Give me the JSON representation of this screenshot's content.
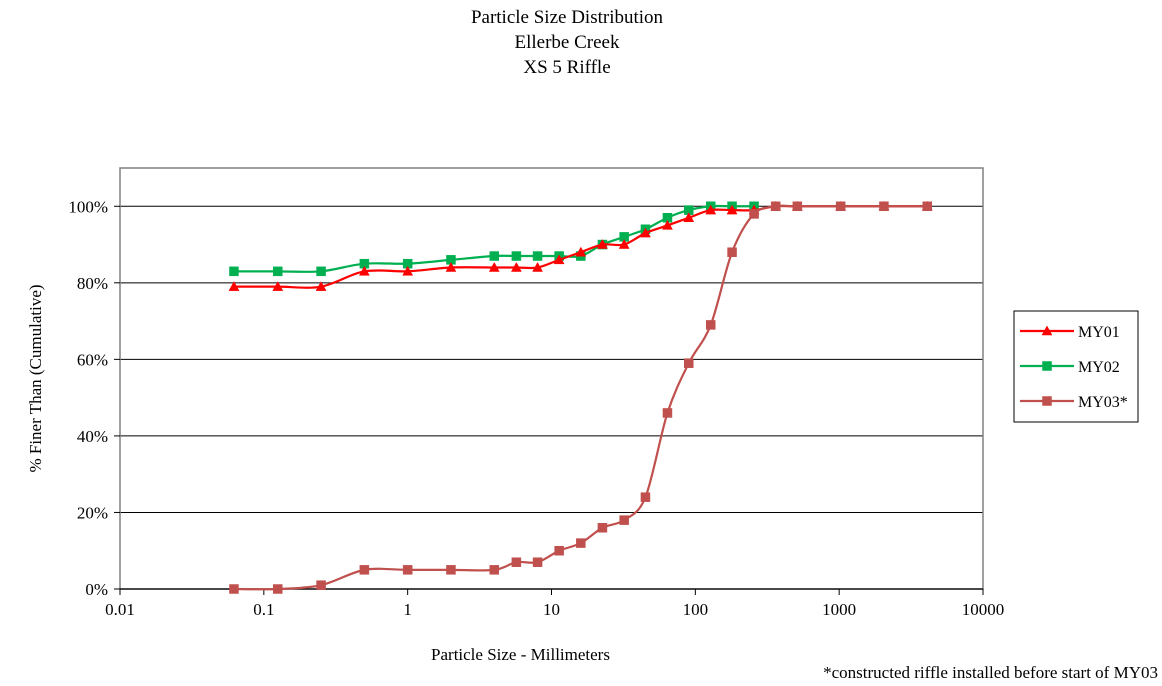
{
  "chart_data": {
    "type": "line",
    "title_lines": [
      "Particle Size Distribution",
      "Ellerbe Creek",
      "XS 5 Riffle"
    ],
    "xlabel": "Particle Size - Millimeters",
    "ylabel": "% Finer Than (Cumulative)",
    "x_scale": "log",
    "xlim": [
      0.01,
      10000
    ],
    "ylim": [
      0,
      110
    ],
    "x_ticks": [
      0.01,
      0.1,
      1,
      10,
      100,
      1000,
      10000
    ],
    "x_tick_labels": [
      "0.01",
      "0.1",
      "1",
      "10",
      "100",
      "1000",
      "10000"
    ],
    "y_ticks": [
      0,
      20,
      40,
      60,
      80,
      100
    ],
    "y_tick_labels": [
      "0%",
      "20%",
      "40%",
      "60%",
      "80%",
      "100%"
    ],
    "grid": "horizontal major gridlines",
    "legend_position": "right",
    "footnote": "*constructed riffle installed before start of MY03",
    "series": [
      {
        "name": "MY01",
        "color": "#ff0000",
        "marker": "triangle",
        "x": [
          0.062,
          0.125,
          0.25,
          0.5,
          1,
          2,
          4,
          5.7,
          8,
          11.3,
          16,
          22.6,
          32,
          45,
          64,
          90,
          128,
          180,
          256,
          362,
          512,
          1024,
          2048,
          4096
        ],
        "y": [
          79,
          79,
          79,
          83,
          83,
          84,
          84,
          84,
          84,
          86,
          88,
          90,
          90,
          93,
          95,
          97,
          99,
          99,
          99,
          100,
          100,
          100,
          100,
          100
        ]
      },
      {
        "name": "MY02",
        "color": "#00b050",
        "marker": "square",
        "x": [
          0.062,
          0.125,
          0.25,
          0.5,
          1,
          2,
          4,
          5.7,
          8,
          11.3,
          16,
          22.6,
          32,
          45,
          64,
          90,
          128,
          180,
          256
        ],
        "y": [
          83,
          83,
          83,
          85,
          85,
          86,
          87,
          87,
          87,
          87,
          87,
          90,
          92,
          94,
          97,
          99,
          100,
          100,
          100
        ]
      },
      {
        "name": "MY03*",
        "color": "#c0504d",
        "marker": "square",
        "x": [
          0.062,
          0.125,
          0.25,
          0.5,
          1,
          2,
          4,
          5.7,
          8,
          11.3,
          16,
          22.6,
          32,
          45,
          64,
          90,
          128,
          180,
          256,
          362,
          512,
          1024,
          2048,
          4096
        ],
        "y": [
          0,
          0,
          1,
          5,
          5,
          5,
          5,
          7,
          7,
          10,
          12,
          16,
          18,
          24,
          46,
          59,
          69,
          88,
          98,
          100,
          100,
          100,
          100,
          100
        ]
      }
    ]
  }
}
